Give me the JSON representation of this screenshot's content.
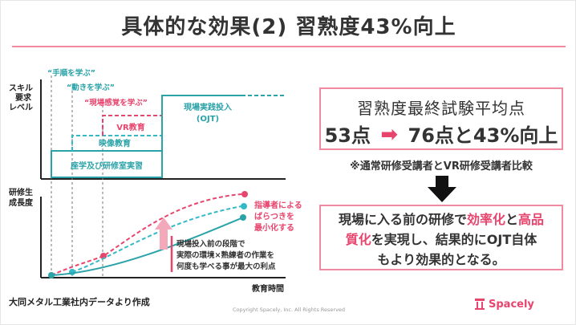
{
  "slide": {
    "title": "具体的な効果(2) 習熟度43%向上",
    "chart": {
      "axis_top_label_1": "スキル",
      "axis_top_label_2": "要求",
      "axis_top_label_3": "レベル",
      "level_tejun": "“手順を学ぶ”",
      "level_ugoki": "“動きを学ぶ”",
      "level_kankaku": "“現場感覚を学ぶ”",
      "stage_zagaku": "座学及び研修室実習",
      "stage_eizo": "映像教育",
      "stage_vr": "VR教育",
      "stage_genba_1": "現場実践投入",
      "stage_genba_2": "(OJT)",
      "axis_bottom_label_1": "研修生",
      "axis_bottom_label_2": "成長度",
      "annotation_teacher_1": "指導者による",
      "annotation_teacher_2": "ばらつきを",
      "annotation_teacher_3": "最小化する",
      "annotation_merit_1": "現場投入前の段階で",
      "annotation_merit_2": "実際の環境×熟練者の作業を",
      "annotation_merit_3": "何度も学べる事が最大の利点",
      "x_axis_label": "教育時間",
      "colors": {
        "teal": "#2aa3a8",
        "cyan_dash": "#34b9c6",
        "pink": "#e8456e",
        "pink_light": "#f4a9bb"
      }
    },
    "result": {
      "title": "習熟度最終試験平均点",
      "before": "53点",
      "after": "76点と43%向上"
    },
    "compare_note": "※通常研修受講者とVR研修受講者比較",
    "summary": {
      "line1_a": "現場に入る前の研修で",
      "line1_b": "効率化",
      "line1_c": "と",
      "line1_d": "高品",
      "line2_a": "質化",
      "line2_b": "を実現し、結果的にOJT自体",
      "line3": "もより効果的となる。"
    },
    "source": "大同メタル工業社内データより作成",
    "copyright": "Copyright Spacely, Inc. All Rights Reserved",
    "logo_text": "Spacely"
  }
}
